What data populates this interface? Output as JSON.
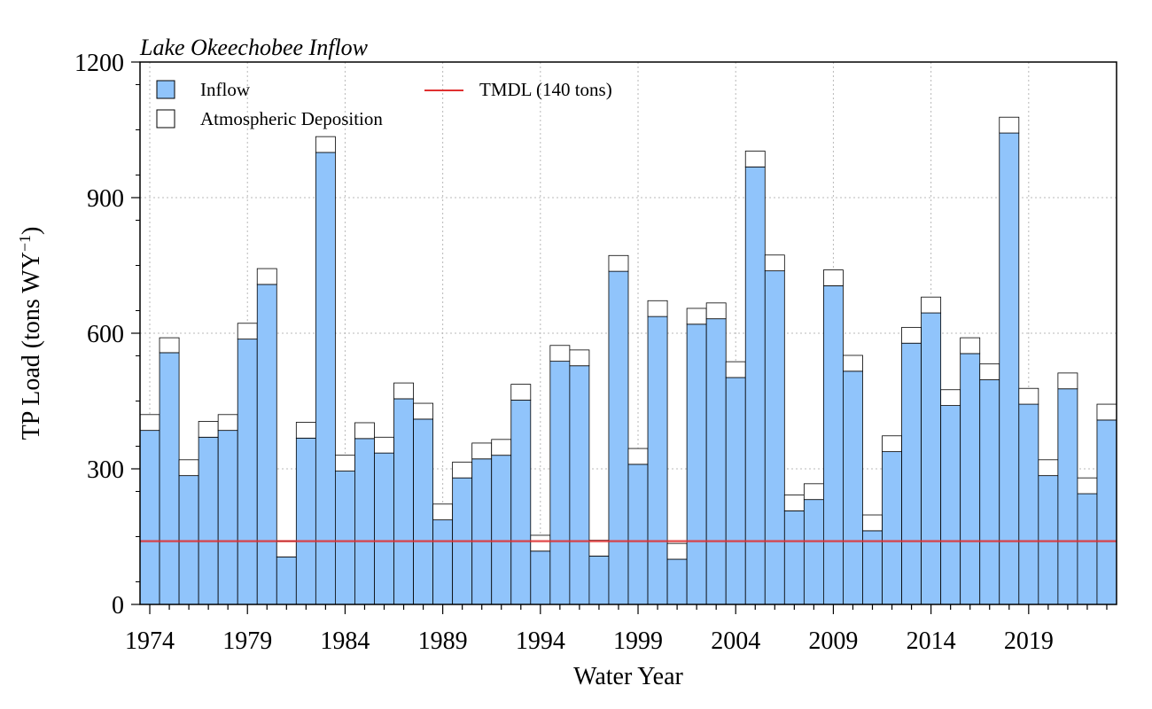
{
  "chart_data": {
    "type": "bar",
    "stacked": true,
    "title": "Lake Okeechobee Inflow",
    "xlabel": "Water Year",
    "ylabel_main": "TP Load (tons WY",
    "ylabel_sup": "−1",
    "ylabel_close": ")",
    "ylim": [
      0,
      1200
    ],
    "yticks": [
      0,
      300,
      600,
      900,
      1200
    ],
    "xticks": [
      1974,
      1979,
      1984,
      1989,
      1994,
      1999,
      2004,
      2009,
      2014,
      2019
    ],
    "grid": true,
    "legend_position": "top-left",
    "years": [
      1974,
      1975,
      1976,
      1977,
      1978,
      1979,
      1980,
      1981,
      1982,
      1983,
      1984,
      1985,
      1986,
      1987,
      1988,
      1989,
      1990,
      1991,
      1992,
      1993,
      1994,
      1995,
      1996,
      1997,
      1998,
      1999,
      2000,
      2001,
      2002,
      2003,
      2004,
      2005,
      2006,
      2007,
      2008,
      2009,
      2010,
      2011,
      2012,
      2013,
      2014,
      2015,
      2016,
      2017,
      2018,
      2019,
      2020,
      2021,
      2022,
      2023
    ],
    "series": [
      {
        "name": "Inflow",
        "color": "#90c4fb",
        "values": [
          385,
          557,
          285,
          370,
          385,
          587,
          708,
          105,
          368,
          1000,
          295,
          367,
          335,
          455,
          410,
          187,
          280,
          322,
          330,
          452,
          118,
          538,
          528,
          107,
          737,
          310,
          637,
          100,
          620,
          632,
          502,
          968,
          738,
          207,
          232,
          705,
          516,
          163,
          338,
          578,
          645,
          440,
          555,
          497,
          1043,
          443,
          285,
          477,
          245,
          408
        ]
      },
      {
        "name": "Atmospheric Deposition",
        "color": "#ffffff",
        "values": [
          35,
          33,
          35,
          35,
          35,
          35,
          35,
          35,
          35,
          35,
          35,
          35,
          35,
          35,
          35,
          35,
          35,
          35,
          35,
          35,
          35,
          35,
          35,
          35,
          35,
          35,
          35,
          35,
          35,
          35,
          35,
          35,
          35,
          35,
          35,
          35,
          35,
          35,
          35,
          35,
          35,
          35,
          35,
          35,
          35,
          35,
          35,
          35,
          35,
          35
        ]
      }
    ],
    "reference_line": {
      "name": "TMDL (140 tons)",
      "value": 140,
      "color": "#e03030"
    }
  }
}
